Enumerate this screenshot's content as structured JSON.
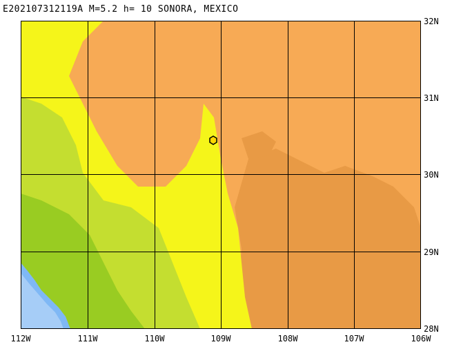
{
  "title": "E202107312119A M=5.2 h= 10 SONORA, MEXICO",
  "lon_labels": [
    "112W",
    "111W",
    "110W",
    "109W",
    "108W",
    "107W",
    "106W"
  ],
  "lat_labels": [
    "32N",
    "31N",
    "30N",
    "29N",
    "28N"
  ],
  "extent": {
    "lon_min": -112,
    "lon_max": -106,
    "lat_min": 28,
    "lat_max": 32
  },
  "epicenter": {
    "lon": -109.15,
    "lat": 30.45
  },
  "colors": {
    "ocean_deep": "#7fb8f5",
    "ocean_shallow": "#a6cdf7",
    "low_green": "#99cc22",
    "mid_green": "#c4de30",
    "yellow": "#f5f51a",
    "orange": "#f7aa55",
    "dark_orange": "#e89a45",
    "grid": "#000000",
    "epicenter": "#ffd700"
  }
}
